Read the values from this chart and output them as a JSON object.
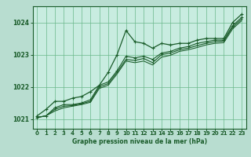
{
  "title": "Graphe pression niveau de la mer (hPa)",
  "background_color": "#b8ddd0",
  "plot_bg_color": "#c8ece0",
  "grid_color": "#6ab88a",
  "line_color": "#1a5c2a",
  "xlim": [
    -0.5,
    23.5
  ],
  "ylim": [
    1020.7,
    1024.5
  ],
  "yticks": [
    1021,
    1022,
    1023,
    1024
  ],
  "xticks": [
    0,
    1,
    2,
    3,
    4,
    5,
    6,
    7,
    8,
    9,
    10,
    11,
    12,
    13,
    14,
    15,
    16,
    17,
    18,
    19,
    20,
    21,
    22,
    23
  ],
  "series1": [
    1021.1,
    1021.3,
    1021.55,
    1021.55,
    1021.65,
    1021.7,
    1021.85,
    1022.05,
    1022.45,
    1023.0,
    1023.75,
    1023.4,
    1023.35,
    1023.2,
    1023.35,
    1023.3,
    1023.35,
    1023.35,
    1023.45,
    1023.5,
    1023.5,
    1023.5,
    1024.0,
    1024.25
  ],
  "series2": [
    1021.05,
    1021.1,
    1021.35,
    1021.45,
    1021.45,
    1021.5,
    1021.6,
    1022.05,
    1022.15,
    1022.5,
    1022.95,
    1022.9,
    1022.95,
    1022.85,
    1023.05,
    1023.1,
    1023.2,
    1023.25,
    1023.35,
    1023.4,
    1023.45,
    1023.45,
    1023.9,
    1024.15
  ],
  "series3": [
    1021.05,
    1021.1,
    1021.3,
    1021.4,
    1021.42,
    1021.48,
    1021.55,
    1022.0,
    1022.1,
    1022.45,
    1022.85,
    1022.82,
    1022.88,
    1022.75,
    1023.0,
    1023.05,
    1023.15,
    1023.2,
    1023.28,
    1023.35,
    1023.4,
    1023.42,
    1023.85,
    1024.1
  ],
  "series4": [
    1021.05,
    1021.1,
    1021.25,
    1021.35,
    1021.4,
    1021.45,
    1021.52,
    1021.95,
    1022.05,
    1022.4,
    1022.8,
    1022.75,
    1022.8,
    1022.68,
    1022.92,
    1022.98,
    1023.1,
    1023.15,
    1023.22,
    1023.3,
    1023.35,
    1023.37,
    1023.8,
    1024.05
  ]
}
